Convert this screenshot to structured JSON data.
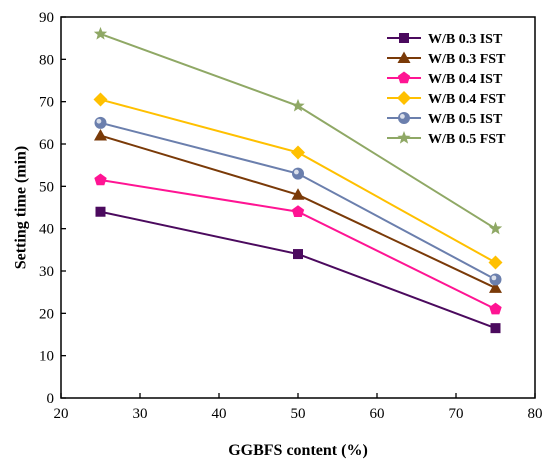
{
  "chart_data": {
    "type": "line",
    "xlabel": "GGBFS content (%)",
    "ylabel": "Setting time (min)",
    "xlim": [
      20,
      80
    ],
    "ylim": [
      0,
      90
    ],
    "xticks": [
      20,
      30,
      40,
      50,
      60,
      70,
      80
    ],
    "yticks": [
      0,
      10,
      20,
      30,
      40,
      50,
      60,
      70,
      80,
      90
    ],
    "grid": false,
    "legend_position": "top-right",
    "x": [
      25,
      50,
      75
    ],
    "series": [
      {
        "name": "W/B 0.3 IST",
        "values": [
          44,
          34,
          16.5
        ],
        "color": "#4b0a5e",
        "marker": "square"
      },
      {
        "name": "W/B 0.3 FST",
        "values": [
          62,
          48,
          26
        ],
        "color": "#7a3a08",
        "marker": "triangle"
      },
      {
        "name": "W/B 0.4 IST",
        "values": [
          51.5,
          44,
          21
        ],
        "color": "#ff1493",
        "marker": "pentagon"
      },
      {
        "name": "W/B 0.4 FST",
        "values": [
          70.5,
          58,
          32
        ],
        "color": "#ffc000",
        "marker": "diamond"
      },
      {
        "name": "W/B 0.5 IST",
        "values": [
          65,
          53,
          28
        ],
        "color": "#6b7fad",
        "marker": "circle"
      },
      {
        "name": "W/B 0.5 FST",
        "values": [
          86,
          69,
          40
        ],
        "color": "#8fa865",
        "marker": "star"
      }
    ]
  }
}
